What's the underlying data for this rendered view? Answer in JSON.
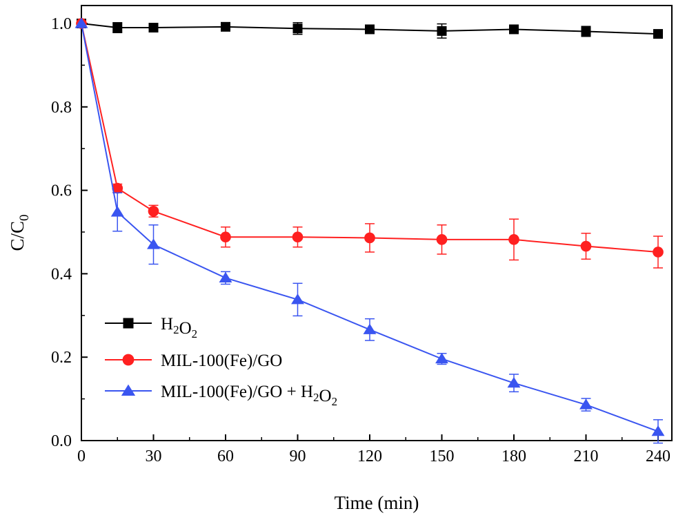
{
  "chart_data": {
    "type": "line",
    "xlabel": "Time (min)",
    "ylabel": {
      "base": "C/C",
      "sub": "0"
    },
    "xlim": [
      0,
      240
    ],
    "ylim": [
      0,
      1.05
    ],
    "x_ticks": [
      0,
      30,
      60,
      90,
      120,
      150,
      180,
      210,
      240
    ],
    "y_ticks": [
      0.0,
      0.2,
      0.4,
      0.6,
      0.8,
      1.0
    ],
    "x_tick_labels": [
      "0",
      "30",
      "60",
      "90",
      "120",
      "150",
      "180",
      "210",
      "240"
    ],
    "y_tick_labels": [
      "0.0",
      "0.2",
      "0.4",
      "0.6",
      "0.8",
      "1.0"
    ],
    "grid": false,
    "legend_position": "bottom-left",
    "series": [
      {
        "name": "H2O2",
        "legend_parts": [
          [
            "H",
            ""
          ],
          [
            "2",
            "sub"
          ],
          [
            "O",
            ""
          ],
          [
            "2",
            "sub"
          ]
        ],
        "color": "#000000",
        "marker": "square",
        "x": [
          0,
          15,
          30,
          60,
          90,
          120,
          150,
          180,
          210,
          240
        ],
        "y": [
          1.0,
          0.99,
          0.99,
          0.992,
          0.988,
          0.986,
          0.982,
          0.986,
          0.981,
          0.975
        ],
        "err": [
          0,
          0.012,
          0.006,
          0.006,
          0.014,
          0.008,
          0.017,
          0.008,
          0.012,
          0.006
        ]
      },
      {
        "name": "MIL-100(Fe)/GO",
        "legend_parts": [
          [
            "MIL-100(Fe)/GO",
            ""
          ]
        ],
        "color": "#ff2020",
        "marker": "circle",
        "x": [
          0,
          15,
          30,
          60,
          90,
          120,
          150,
          180,
          210,
          240
        ],
        "y": [
          1.0,
          0.605,
          0.55,
          0.488,
          0.488,
          0.486,
          0.482,
          0.482,
          0.466,
          0.452
        ],
        "err": [
          0,
          0.01,
          0.014,
          0.024,
          0.024,
          0.034,
          0.035,
          0.049,
          0.031,
          0.038
        ]
      },
      {
        "name": "MIL-100(Fe)/GO + H2O2",
        "legend_parts": [
          [
            "MIL-100(Fe)/GO + H",
            ""
          ],
          [
            "2",
            "sub"
          ],
          [
            "O",
            ""
          ],
          [
            "2",
            "sub"
          ]
        ],
        "color": "#3a55f0",
        "marker": "triangle",
        "x": [
          0,
          15,
          30,
          60,
          90,
          120,
          150,
          180,
          210,
          240
        ],
        "y": [
          1.0,
          0.548,
          0.47,
          0.39,
          0.338,
          0.266,
          0.196,
          0.138,
          0.086,
          0.022
        ],
        "err": [
          0,
          0.046,
          0.047,
          0.015,
          0.039,
          0.026,
          0.013,
          0.021,
          0.015,
          0.028
        ]
      }
    ]
  }
}
